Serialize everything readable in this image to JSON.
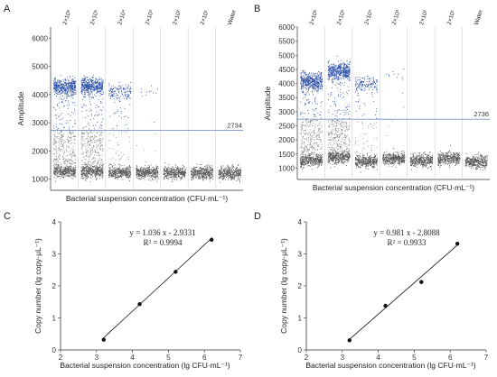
{
  "chart_data": [
    {
      "panel": "A",
      "type": "scatter",
      "subtype": "ddPCR droplet amplitude plot",
      "title": "",
      "xlabel": "Bacterial suspension concentration (CFU·mL⁻¹)",
      "ylabel": "Amplitude",
      "ylim": [
        600,
        6400
      ],
      "yticks": [
        1000,
        2000,
        3000,
        4000,
        5000,
        6000
      ],
      "categories": [
        "2×10⁶",
        "2×10⁵",
        "2×10⁴",
        "2×10³",
        "2×10²",
        "2×10¹",
        "Water"
      ],
      "threshold": 2734,
      "threshold_label": "2734",
      "positive_cluster_center": [
        4300,
        4300,
        4100,
        4150,
        0,
        0,
        0
      ],
      "positive_density": [
        "very high",
        "very high",
        "high",
        "few",
        "none",
        "none",
        "none"
      ],
      "negative_cluster_center": [
        1300,
        1280,
        1250,
        1240,
        1240,
        1230,
        1220
      ],
      "positive_color": "#2c4fa8",
      "negative_color": "#555555",
      "threshold_color": "#7f8fc4"
    },
    {
      "panel": "B",
      "type": "scatter",
      "subtype": "ddPCR droplet amplitude plot",
      "title": "",
      "xlabel": "Bacterial suspension concentration (CFU·mL⁻¹)",
      "ylabel": "Amplitude",
      "ylim": [
        600,
        6000
      ],
      "yticks": [
        1000,
        1500,
        2000,
        2500,
        3000,
        3500,
        4000,
        4500,
        5000,
        5500,
        6000
      ],
      "categories": [
        "2×10⁶",
        "2×10⁵",
        "2×10⁴",
        "2×10³",
        "2×10²",
        "2×10¹",
        "Water"
      ],
      "threshold": 2736,
      "threshold_label": "2736",
      "positive_cluster_center": [
        4100,
        4450,
        4000,
        4400,
        0,
        0,
        0
      ],
      "positive_density": [
        "very high",
        "very high",
        "high",
        "few",
        "none",
        "none",
        "none"
      ],
      "negative_cluster_center": [
        1280,
        1400,
        1250,
        1350,
        1280,
        1350,
        1250
      ],
      "positive_color": "#2c4fa8",
      "negative_color": "#555555",
      "threshold_color": "#7f8fc4"
    },
    {
      "panel": "C",
      "type": "scatter",
      "subtype": "scatter with linear fit",
      "title": "",
      "xlabel": "Bacterial suspension concentration (lg CFU·mL⁻¹)",
      "ylabel": "Copy number (lg copy·μL⁻¹)",
      "xlim": [
        2,
        7
      ],
      "ylim": [
        0,
        4
      ],
      "xticks": [
        2,
        3,
        4,
        5,
        6,
        7
      ],
      "yticks": [
        0,
        1,
        2,
        3,
        4
      ],
      "x": [
        3.2,
        4.2,
        5.2,
        6.2
      ],
      "y": [
        0.32,
        1.43,
        2.44,
        3.44
      ],
      "fit": {
        "slope": 1.036,
        "intercept": -2.9331
      },
      "fit_x_range": [
        3.2,
        6.2
      ],
      "equation": "y = 1.036 x - 2.9331",
      "r2": "R² = 0.9994"
    },
    {
      "panel": "D",
      "type": "scatter",
      "subtype": "scatter with linear fit",
      "title": "",
      "xlabel": "Bacterial suspension concentration (lg CFU·mL⁻¹)",
      "ylabel": "Copy number (lg copy·μL⁻¹)",
      "xlim": [
        2,
        7
      ],
      "ylim": [
        0,
        4
      ],
      "xticks": [
        2,
        3,
        4,
        5,
        6,
        7
      ],
      "yticks": [
        0,
        1,
        2,
        3,
        4
      ],
      "x": [
        3.2,
        4.2,
        5.2,
        6.2
      ],
      "y": [
        0.3,
        1.38,
        2.12,
        3.32
      ],
      "fit": {
        "slope": 0.981,
        "intercept": -2.8088
      },
      "fit_x_range": [
        3.2,
        6.2
      ],
      "equation": "y = 0.981 x - 2.8088",
      "r2": "R² = 0.9933"
    }
  ]
}
